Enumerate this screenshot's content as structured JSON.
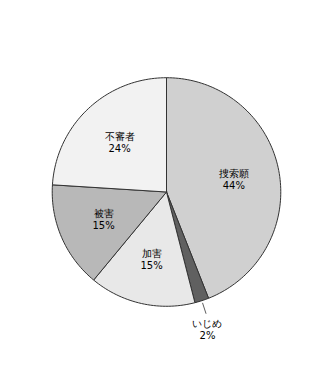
{
  "chart_data": {
    "type": "pie",
    "categories": [
      "捜索願",
      "いじめ",
      "加害",
      "被害",
      "不審者"
    ],
    "values": [
      44,
      2,
      15,
      15,
      24
    ],
    "value_labels": [
      "44%",
      "2%",
      "15%",
      "15%",
      "24%"
    ],
    "colors": [
      "#d0d0d0",
      "#606060",
      "#e8e8e8",
      "#b8b8b8",
      "#f2f2f2"
    ],
    "data_labels": true
  }
}
